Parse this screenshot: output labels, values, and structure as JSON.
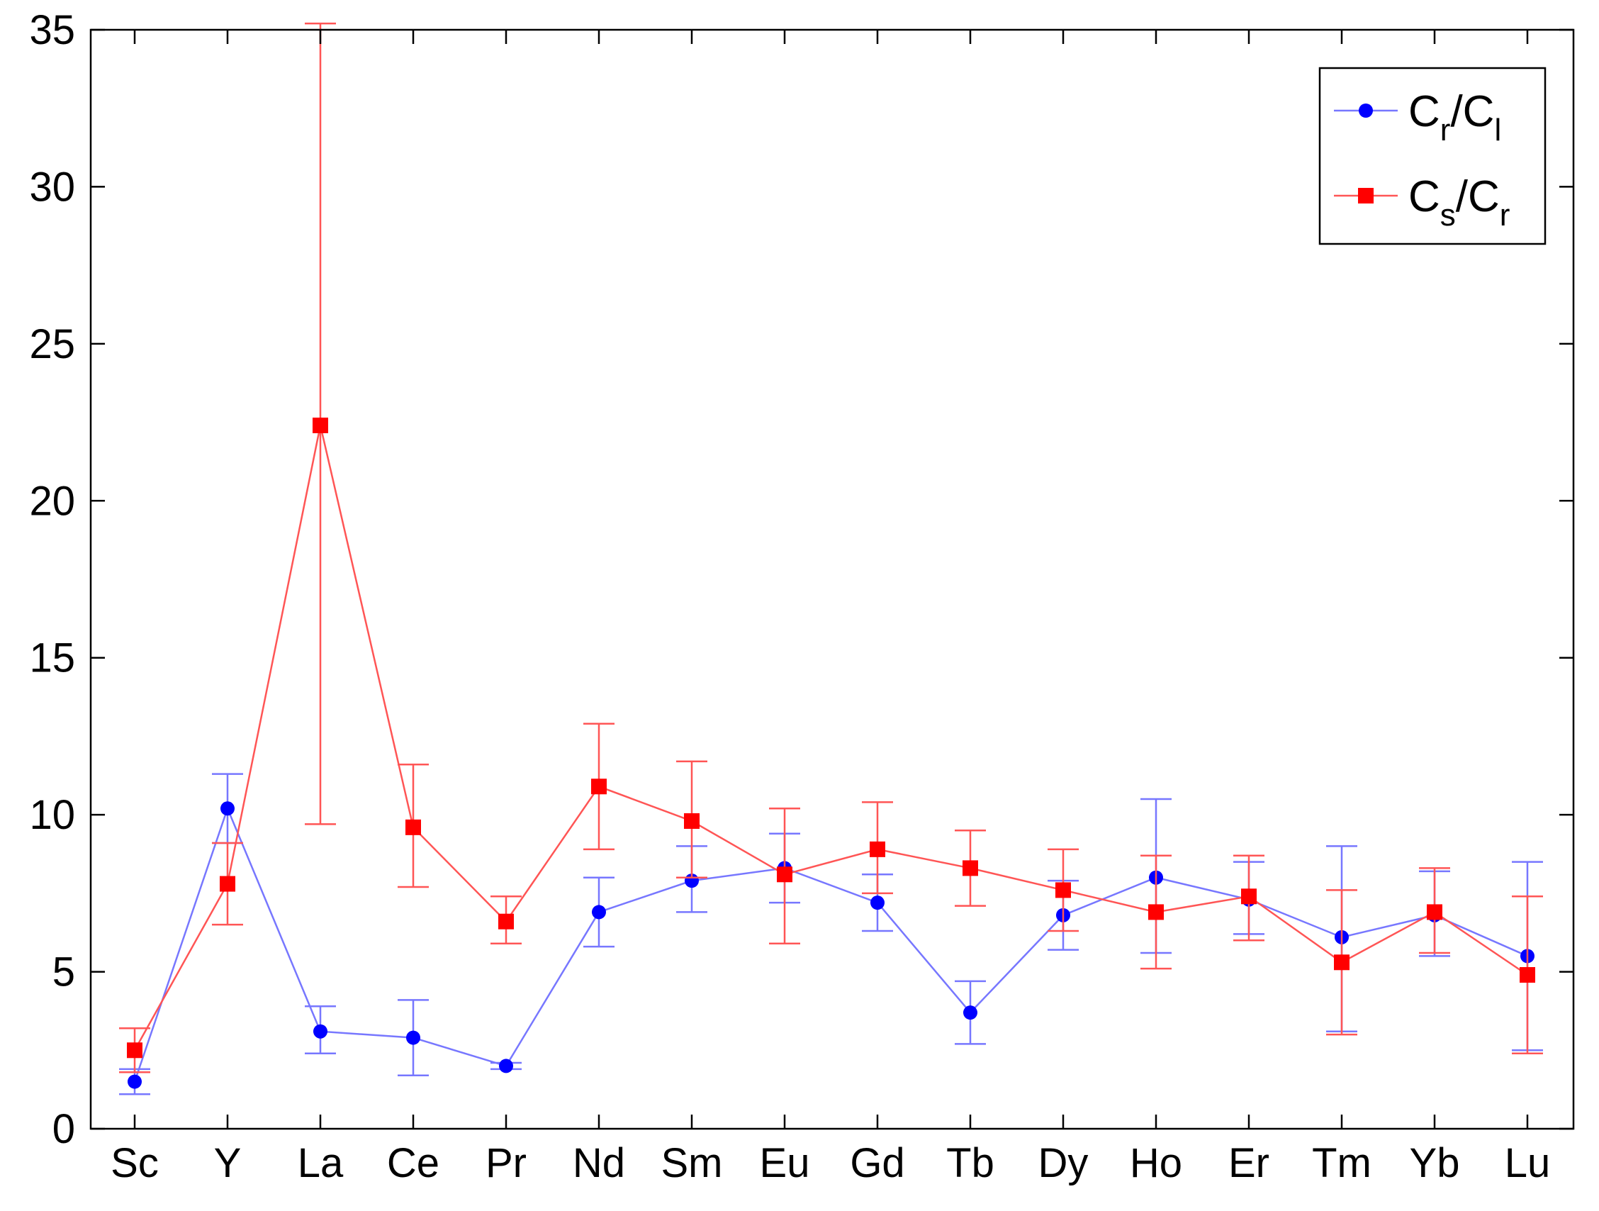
{
  "chart_data": {
    "type": "line",
    "title": "",
    "xlabel": "",
    "ylabel": "",
    "categories": [
      "Sc",
      "Y",
      "La",
      "Ce",
      "Pr",
      "Nd",
      "Sm",
      "Eu",
      "Gd",
      "Tb",
      "Dy",
      "Ho",
      "Er",
      "Tm",
      "Yb",
      "Lu"
    ],
    "ylim": [
      0,
      35
    ],
    "yticks": [
      0,
      5,
      10,
      15,
      20,
      25,
      30,
      35
    ],
    "ytick_labels": [
      "0",
      "5",
      "10",
      "15",
      "20",
      "25",
      "30",
      "35"
    ],
    "grid": false,
    "legend_position": "top-right",
    "series": [
      {
        "name": "Cr/Cl",
        "legend_main_1": "C",
        "legend_sub_1": "r",
        "legend_slash": "/",
        "legend_main_2": "C",
        "legend_sub_2": "l",
        "color": "#0000ff",
        "line_color": "#7777ff",
        "marker": "circle",
        "values": [
          1.5,
          10.2,
          3.1,
          2.9,
          2.0,
          6.9,
          7.9,
          8.3,
          7.2,
          3.7,
          6.8,
          8.0,
          7.3,
          6.1,
          6.8,
          5.5
        ],
        "error_low": [
          1.1,
          9.1,
          2.4,
          1.7,
          1.9,
          5.8,
          6.9,
          7.2,
          6.3,
          2.7,
          5.7,
          5.6,
          6.2,
          3.1,
          5.5,
          2.5
        ],
        "error_high": [
          1.9,
          11.3,
          3.9,
          4.1,
          2.1,
          8.0,
          9.0,
          9.4,
          8.1,
          4.7,
          7.9,
          10.5,
          8.5,
          9.0,
          8.2,
          8.5
        ]
      },
      {
        "name": "Cs/Cr",
        "legend_main_1": "C",
        "legend_sub_1": "s",
        "legend_slash": "/",
        "legend_main_2": "C",
        "legend_sub_2": "r",
        "color": "#ff0000",
        "line_color": "#ff5555",
        "marker": "square",
        "values": [
          2.5,
          7.8,
          22.4,
          9.6,
          6.6,
          10.9,
          9.8,
          8.1,
          8.9,
          8.3,
          7.6,
          6.9,
          7.4,
          5.3,
          6.9,
          4.9
        ],
        "error_low": [
          1.8,
          6.5,
          9.7,
          7.7,
          5.9,
          8.9,
          8.0,
          5.9,
          7.5,
          7.1,
          6.3,
          5.1,
          6.0,
          3.0,
          5.6,
          2.4
        ],
        "error_high": [
          3.2,
          9.1,
          35.2,
          11.6,
          7.4,
          12.9,
          11.7,
          10.2,
          10.4,
          9.5,
          8.9,
          8.7,
          8.7,
          7.6,
          8.3,
          7.4
        ]
      }
    ]
  }
}
